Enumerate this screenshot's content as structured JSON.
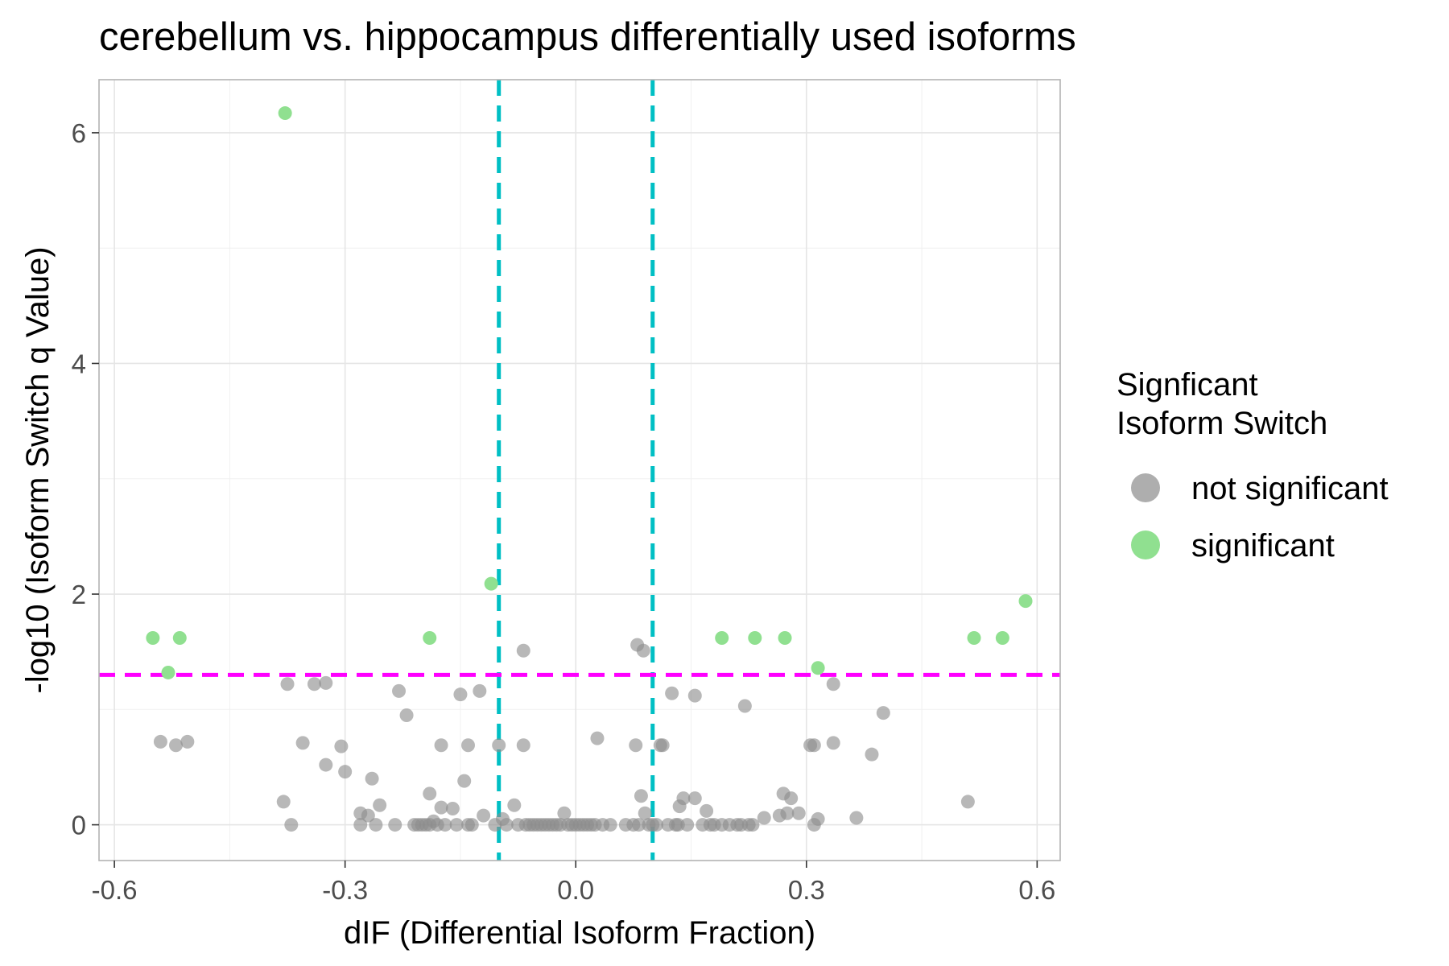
{
  "chart_data": {
    "type": "scatter",
    "title": "cerebellum vs. hippocampus differentially used isoforms",
    "xlabel": "dIF (Differential Isoform Fraction)",
    "ylabel": "-log10 (Isoform Switch q Value)",
    "xlim": [
      -0.62,
      0.63
    ],
    "ylim": [
      -0.31,
      6.46
    ],
    "x_ticks": [
      -0.6,
      -0.3,
      0.0,
      0.3,
      0.6
    ],
    "x_tick_labels": [
      "-0.6",
      "-0.3",
      "0.0",
      "0.3",
      "0.6"
    ],
    "y_ticks": [
      0,
      2,
      4,
      6
    ],
    "y_tick_labels": [
      "0",
      "2",
      "4",
      "6"
    ],
    "grid": true,
    "legend": {
      "title_lines": [
        "Signficant",
        "Isoform Switch"
      ],
      "placement": "right",
      "entries": [
        {
          "label": "not significant",
          "color": "#8c8c8c"
        },
        {
          "label": "significant",
          "color": "#90e090"
        }
      ]
    },
    "reference_lines": [
      {
        "orientation": "vertical",
        "value": -0.1,
        "color": "#00bfc4",
        "style": "dashed"
      },
      {
        "orientation": "vertical",
        "value": 0.1,
        "color": "#00bfc4",
        "style": "dashed"
      },
      {
        "orientation": "horizontal",
        "value": 1.3,
        "color": "#ff00ff",
        "style": "dashed"
      }
    ],
    "series": [
      {
        "name": "not significant",
        "color": "#8c8c8c",
        "opacity": 0.62,
        "points": [
          [
            -0.54,
            0.72
          ],
          [
            -0.52,
            0.69
          ],
          [
            -0.505,
            0.72
          ],
          [
            -0.38,
            0.2
          ],
          [
            -0.37,
            0.0
          ],
          [
            -0.375,
            1.22
          ],
          [
            -0.355,
            0.71
          ],
          [
            -0.34,
            1.22
          ],
          [
            -0.325,
            1.23
          ],
          [
            -0.325,
            0.52
          ],
          [
            -0.305,
            0.68
          ],
          [
            -0.3,
            0.46
          ],
          [
            -0.28,
            0.1
          ],
          [
            -0.28,
            0.0
          ],
          [
            -0.27,
            0.08
          ],
          [
            -0.265,
            0.4
          ],
          [
            -0.26,
            0.0
          ],
          [
            -0.255,
            0.17
          ],
          [
            -0.235,
            0.0
          ],
          [
            -0.23,
            1.16
          ],
          [
            -0.22,
            0.95
          ],
          [
            -0.21,
            0.0
          ],
          [
            -0.205,
            0.0
          ],
          [
            -0.2,
            0.0
          ],
          [
            -0.195,
            0.0
          ],
          [
            -0.19,
            0.27
          ],
          [
            -0.19,
            0.0
          ],
          [
            -0.185,
            0.03
          ],
          [
            -0.18,
            0.0
          ],
          [
            -0.175,
            0.69
          ],
          [
            -0.175,
            0.15
          ],
          [
            -0.17,
            0.0
          ],
          [
            -0.16,
            0.14
          ],
          [
            -0.155,
            0.0
          ],
          [
            -0.15,
            1.13
          ],
          [
            -0.145,
            0.38
          ],
          [
            -0.14,
            0.69
          ],
          [
            -0.14,
            0.0
          ],
          [
            -0.135,
            0.0
          ],
          [
            -0.125,
            1.16
          ],
          [
            -0.12,
            0.08
          ],
          [
            -0.105,
            0.0
          ],
          [
            -0.1,
            0.69
          ],
          [
            -0.095,
            0.05
          ],
          [
            -0.09,
            0.0
          ],
          [
            -0.08,
            0.17
          ],
          [
            -0.075,
            0.0
          ],
          [
            -0.068,
            1.51
          ],
          [
            -0.068,
            0.69
          ],
          [
            -0.065,
            0.0
          ],
          [
            -0.06,
            0.0
          ],
          [
            -0.055,
            0.0
          ],
          [
            -0.05,
            0.0
          ],
          [
            -0.045,
            0.0
          ],
          [
            -0.04,
            0.0
          ],
          [
            -0.035,
            0.0
          ],
          [
            -0.03,
            0.0
          ],
          [
            -0.025,
            0.0
          ],
          [
            -0.02,
            0.0
          ],
          [
            -0.015,
            0.1
          ],
          [
            -0.01,
            0.0
          ],
          [
            -0.005,
            0.0
          ],
          [
            0.0,
            0.0
          ],
          [
            0.005,
            0.0
          ],
          [
            0.01,
            0.0
          ],
          [
            0.015,
            0.0
          ],
          [
            0.02,
            0.0
          ],
          [
            0.025,
            0.0
          ],
          [
            0.028,
            0.75
          ],
          [
            0.035,
            0.0
          ],
          [
            0.045,
            0.0
          ],
          [
            0.065,
            0.0
          ],
          [
            0.075,
            0.0
          ],
          [
            0.078,
            0.69
          ],
          [
            0.08,
            1.56
          ],
          [
            0.082,
            0.0
          ],
          [
            0.085,
            0.25
          ],
          [
            0.088,
            1.51
          ],
          [
            0.09,
            0.1
          ],
          [
            0.095,
            0.0
          ],
          [
            0.1,
            0.0
          ],
          [
            0.105,
            0.0
          ],
          [
            0.11,
            0.69
          ],
          [
            0.113,
            0.69
          ],
          [
            0.12,
            0.0
          ],
          [
            0.125,
            1.14
          ],
          [
            0.13,
            0.0
          ],
          [
            0.133,
            0.0
          ],
          [
            0.135,
            0.16
          ],
          [
            0.14,
            0.23
          ],
          [
            0.145,
            0.0
          ],
          [
            0.155,
            1.12
          ],
          [
            0.155,
            0.23
          ],
          [
            0.165,
            0.0
          ],
          [
            0.17,
            0.12
          ],
          [
            0.175,
            0.0
          ],
          [
            0.18,
            0.0
          ],
          [
            0.19,
            0.0
          ],
          [
            0.2,
            0.0
          ],
          [
            0.21,
            0.0
          ],
          [
            0.215,
            0.0
          ],
          [
            0.22,
            1.03
          ],
          [
            0.225,
            0.0
          ],
          [
            0.23,
            0.0
          ],
          [
            0.245,
            0.06
          ],
          [
            0.265,
            0.08
          ],
          [
            0.27,
            0.27
          ],
          [
            0.275,
            0.1
          ],
          [
            0.28,
            0.23
          ],
          [
            0.29,
            0.1
          ],
          [
            0.305,
            0.69
          ],
          [
            0.31,
            0.69
          ],
          [
            0.31,
            0.0
          ],
          [
            0.315,
            0.05
          ],
          [
            0.335,
            1.22
          ],
          [
            0.335,
            0.71
          ],
          [
            0.365,
            0.06
          ],
          [
            0.385,
            0.61
          ],
          [
            0.4,
            0.97
          ],
          [
            0.51,
            0.2
          ]
        ]
      },
      {
        "name": "significant",
        "color": "#90e090",
        "opacity": 1.0,
        "points": [
          [
            -0.378,
            6.17
          ],
          [
            -0.11,
            2.09
          ],
          [
            -0.55,
            1.62
          ],
          [
            -0.53,
            1.32
          ],
          [
            -0.515,
            1.62
          ],
          [
            -0.19,
            1.62
          ],
          [
            0.19,
            1.62
          ],
          [
            0.233,
            1.62
          ],
          [
            0.272,
            1.62
          ],
          [
            0.315,
            1.36
          ],
          [
            0.518,
            1.62
          ],
          [
            0.555,
            1.62
          ],
          [
            0.585,
            1.94
          ]
        ]
      }
    ]
  }
}
